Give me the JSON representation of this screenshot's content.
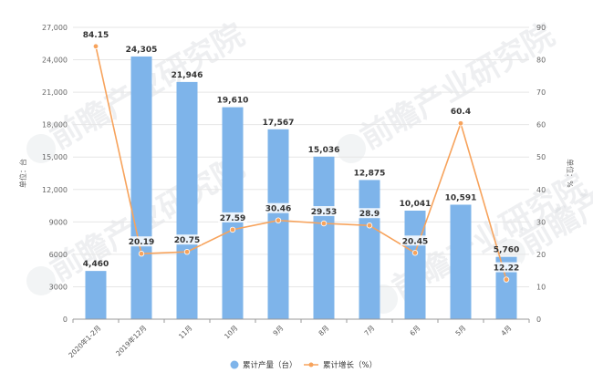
{
  "chart_data": {
    "type": "bar+line",
    "categories": [
      "2020年1-2月",
      "2019年12月",
      "11月",
      "10月",
      "9月",
      "8月",
      "7月",
      "6月",
      "5月",
      "4月"
    ],
    "series": [
      {
        "name": "累计产量（台）",
        "type": "bar",
        "axis": "left",
        "values": [
          4460,
          24305,
          21946,
          19610,
          17567,
          15036,
          12875,
          10041,
          10591,
          5760
        ],
        "labels": [
          "4,460",
          "24,305",
          "21,946",
          "19,610",
          "17,567",
          "15,036",
          "12,875",
          "10,041",
          "10,591",
          "5,760"
        ]
      },
      {
        "name": "累计增长（%）",
        "type": "line",
        "axis": "right",
        "values": [
          84.15,
          20.19,
          20.75,
          27.59,
          30.46,
          29.53,
          28.9,
          20.45,
          60.4,
          12.22
        ],
        "labels": [
          "84.15",
          "20.19",
          "20.75",
          "27.59",
          "30.46",
          "29.53",
          "28.9",
          "20.45",
          "60.4",
          "12.22"
        ]
      }
    ],
    "y_left": {
      "label": "单位：台",
      "ylim": [
        0,
        27000
      ],
      "ticks": [
        0,
        3000,
        6000,
        9000,
        12000,
        15000,
        18000,
        21000,
        24000,
        27000
      ],
      "tick_labels": [
        "0",
        "3000",
        "6000",
        "9000",
        "12,000",
        "15,000",
        "18,000",
        "21,000",
        "24,000",
        "27,000"
      ]
    },
    "y_right": {
      "label": "单位：%",
      "ylim": [
        0,
        90
      ],
      "ticks": [
        0,
        10,
        20,
        30,
        40,
        50,
        60,
        70,
        80,
        90
      ],
      "tick_labels": [
        "0",
        "10",
        "20",
        "30",
        "40",
        "50",
        "60",
        "70",
        "80",
        "90"
      ]
    },
    "grid": true,
    "legend": "bottom",
    "colors": {
      "bar": "#7eb4ea",
      "line": "#f7a35c"
    }
  },
  "watermark": {
    "text": "前瞻产业研究院"
  }
}
